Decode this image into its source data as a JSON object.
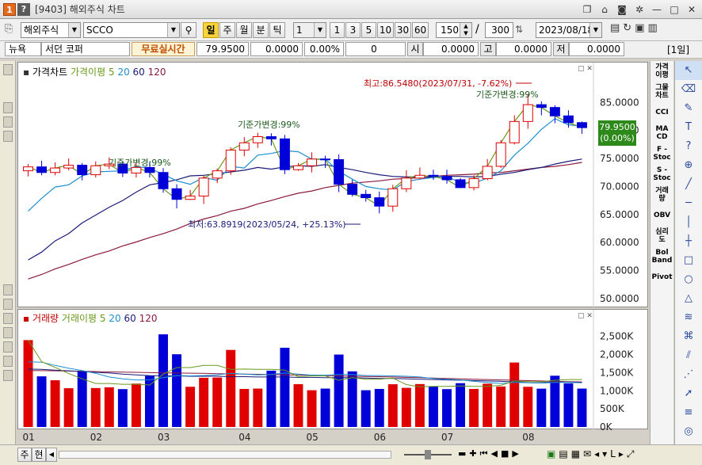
{
  "window": {
    "num": "1",
    "help": "?",
    "title": "[9403] 해외주식 차트"
  },
  "toolbar": {
    "market": "해외주식",
    "symbol": "SCCO",
    "periods": [
      "일",
      "주",
      "월",
      "분",
      "틱"
    ],
    "interval_value": "1",
    "quick_counts": [
      "1",
      "3",
      "5",
      "10",
      "30",
      "60"
    ],
    "count": "150",
    "count_total": "300",
    "date": "2023/08/18"
  },
  "quote": {
    "exchange": "뉴욕",
    "name": "서던 코퍼",
    "realtime_label": "무료실시간",
    "price": "79.9500",
    "change": "0.0000",
    "change_pct": "0.00%",
    "volume": "0",
    "open_label": "시",
    "open": "0.0000",
    "high_label": "고",
    "high": "0.0000",
    "low_label": "저",
    "low": "0.0000",
    "period_tag": "[1일]"
  },
  "price_chart": {
    "legend": {
      "title": "가격차트",
      "ma_title": "가격이평",
      "ma": [
        "5",
        "20",
        "60",
        "120"
      ]
    },
    "y_ticks": [
      "85.0000",
      "80.0000",
      "75.0000",
      "70.0000",
      "65.0000",
      "60.0000",
      "55.0000",
      "50.0000"
    ],
    "current_price_label": "79.9500",
    "current_change_label": "(0.00%)",
    "annotations": {
      "high": "최고:86.5480(2023/07/31, -7.62%)",
      "low": "최저:63.8919(2023/05/24, +25.13%)",
      "base1": "기준가변경:99%",
      "base2": "기준가변경:99%",
      "base3": "기준가변경:99%"
    }
  },
  "volume_chart": {
    "legend": {
      "title": "거래량",
      "ma_title": "거래이평",
      "ma": [
        "5",
        "20",
        "60",
        "120"
      ]
    },
    "y_ticks": [
      "2,500K",
      "2,000K",
      "1,500K",
      "1,000K",
      "500K",
      "0K"
    ]
  },
  "x_ticks": [
    "01",
    "02",
    "03",
    "04",
    "05",
    "06",
    "07",
    "08"
  ],
  "right_tools": [
    "가격\n이평",
    "그물\n차트",
    "CCI",
    "MA\nCD",
    "F -\nStoc",
    "S -\nStoc",
    "거래\n량",
    "OBV",
    "심리\n도",
    "Bol\nBand",
    "Pivot"
  ],
  "bottom": {
    "tab1": "주",
    "tab2": "현"
  },
  "colors": {
    "up": "#e00000",
    "down": "#0000d8",
    "ma5": "#6a9a1a",
    "ma20": "#1c8fd0",
    "ma60": "#1a1a7a",
    "ma120": "#8a1a3a",
    "annotation": "#c00000"
  },
  "chart_data": [
    {
      "type": "candlestick",
      "title": "가격차트",
      "x_ticks": [
        "01",
        "02",
        "03",
        "04",
        "05",
        "06",
        "07",
        "08"
      ],
      "ylim": [
        49,
        89
      ],
      "series": [
        {
          "name": "5",
          "values": [
            73.5,
            72.5,
            73.3,
            73.8,
            72.1,
            73.7,
            74,
            72.4,
            73.4,
            72.5,
            69.6,
            67.7,
            68.3,
            71.5,
            72.8,
            76.5,
            77.8,
            78.9,
            78.5,
            73,
            73.7,
            74.9,
            74.8,
            70.4,
            68.6,
            68,
            66.5,
            69.6,
            71.5,
            72,
            71.8,
            71.2,
            69.8,
            71.4,
            73.6,
            77.8,
            81.6,
            84.6,
            84.1,
            82.6,
            81.4,
            80.5
          ]
        },
        {
          "name": "20",
          "values": [
            65.6,
            67.9,
            69.9,
            70.3,
            71.9,
            72.6,
            72.7,
            72.8,
            73.6,
            73.2,
            72.2,
            71,
            70.4,
            71.6,
            71.1,
            73.6,
            73.3,
            75.6,
            75.9,
            76.4,
            76.2,
            74.9,
            74.9,
            72.7,
            71.3,
            70,
            69.6,
            69.4,
            70.9,
            71.3,
            71.6,
            71.8,
            70.7,
            70.6,
            71.5,
            72.8,
            75.6,
            77.7,
            80.2,
            82.1,
            81,
            80.8
          ]
        },
        {
          "name": "60",
          "values": [
            56.9,
            58.3,
            60.3,
            61.6,
            63.5,
            64.9,
            66.3,
            67.5,
            69,
            70.3,
            70.7,
            71.2,
            71.9,
            72,
            72.3,
            72.6,
            72.9,
            73.4,
            73.1,
            73.5,
            73.7,
            73.6,
            73.9,
            73.4,
            73,
            72.5,
            72.1,
            71.8,
            71.7,
            71.7,
            71.6,
            71.8,
            71.8,
            71.7,
            71.8,
            72.2,
            72.5,
            73,
            73.4,
            74,
            74.5,
            74.9
          ]
        },
        {
          "name": "120",
          "values": [
            53.5,
            54.3,
            55.3,
            56.1,
            57,
            57.8,
            58.5,
            59.4,
            60.1,
            60.9,
            61.6,
            62.4,
            63.4,
            64.2,
            64.8,
            65.6,
            66.1,
            66.9,
            67.5,
            68.2,
            68.8,
            69.2,
            69.8,
            70.2,
            70.6,
            70.8,
            71,
            71.3,
            71.4,
            71.6,
            71.8,
            72,
            72.1,
            72.2,
            72.4,
            72.5,
            72.8,
            73.1,
            73.4,
            73.6,
            73.9,
            74.3
          ]
        }
      ],
      "ohlc": [
        [
          72.8,
          74.0,
          71.8,
          73.5
        ],
        [
          73.5,
          74.6,
          72.0,
          72.5
        ],
        [
          72.5,
          74.3,
          72.0,
          73.3
        ],
        [
          73.3,
          75.0,
          72.9,
          73.8
        ],
        [
          73.8,
          74.2,
          71.1,
          72.1
        ],
        [
          72.1,
          74.5,
          71.6,
          73.7
        ],
        [
          73.7,
          75.2,
          73.1,
          74.0
        ],
        [
          74.0,
          74.5,
          71.7,
          72.4
        ],
        [
          72.4,
          74.3,
          71.6,
          73.4
        ],
        [
          73.4,
          74.4,
          71.6,
          72.5
        ],
        [
          72.5,
          73.3,
          68.9,
          69.6
        ],
        [
          69.6,
          70.4,
          66.1,
          67.7
        ],
        [
          67.7,
          69.4,
          67.6,
          68.3
        ],
        [
          68.3,
          72.0,
          66.9,
          71.5
        ],
        [
          71.5,
          73.2,
          70.6,
          72.8
        ],
        [
          72.8,
          77.0,
          72.1,
          76.5
        ],
        [
          76.5,
          78.8,
          75.4,
          77.8
        ],
        [
          77.8,
          79.6,
          76.9,
          78.9
        ],
        [
          78.9,
          79.5,
          77.3,
          78.5
        ],
        [
          78.5,
          79.2,
          72.2,
          73.0
        ],
        [
          73.0,
          74.2,
          72.8,
          73.7
        ],
        [
          73.7,
          76.1,
          72.5,
          74.9
        ],
        [
          74.9,
          75.5,
          73.3,
          74.8
        ],
        [
          74.8,
          75.7,
          69.0,
          70.4
        ],
        [
          70.4,
          71.2,
          68.2,
          68.6
        ],
        [
          68.6,
          69.4,
          67.3,
          68.0
        ],
        [
          68.0,
          69.1,
          65.2,
          66.5
        ],
        [
          66.5,
          70.3,
          65.5,
          69.6
        ],
        [
          69.6,
          72.9,
          69.0,
          71.5
        ],
        [
          71.5,
          73.4,
          71.3,
          72.0
        ],
        [
          72.0,
          73.0,
          71.2,
          71.8
        ],
        [
          71.8,
          73.0,
          70.5,
          71.2
        ],
        [
          71.2,
          71.5,
          69.7,
          69.8
        ],
        [
          69.8,
          72.0,
          69.3,
          71.4
        ],
        [
          71.4,
          74.9,
          71.1,
          73.6
        ],
        [
          73.6,
          78.3,
          73.3,
          77.8
        ],
        [
          77.8,
          82.7,
          77.5,
          81.6
        ],
        [
          81.6,
          86.5,
          80.3,
          84.6
        ],
        [
          84.6,
          85.2,
          82.7,
          84.1
        ],
        [
          84.1,
          84.5,
          81.3,
          82.6
        ],
        [
          82.6,
          83.6,
          80.5,
          81.4
        ],
        [
          81.4,
          81.6,
          79.4,
          80.5
        ]
      ]
    },
    {
      "type": "bar",
      "title": "거래량",
      "x_ticks": [
        "01",
        "02",
        "03",
        "04",
        "05",
        "06",
        "07",
        "08"
      ],
      "ylim": [
        0,
        2800
      ],
      "values": [
        2398,
        1398,
        1290,
        1070,
        1530,
        1075,
        1095,
        1045,
        1198,
        1410,
        2558,
        2008,
        1110,
        1358,
        1365,
        2128,
        1050,
        1060,
        1555,
        2188,
        1183,
        1015,
        1060,
        2000,
        1535,
        1015,
        1050,
        1180,
        1080,
        1185,
        1125,
        1045,
        1210,
        1050,
        1195,
        1118,
        1780,
        1110,
        1058,
        1415,
        1205,
        1060
      ],
      "series": [
        {
          "name": "5",
          "values": [
            2400,
            1802,
            1644,
            1474,
            1330,
            1200,
            1200,
            1180,
            1180,
            1160,
            1460,
            1640,
            1640,
            1700,
            1700,
            1590,
            1600,
            1590,
            1590,
            1570,
            1390,
            1410,
            1410,
            1290,
            1360,
            1320,
            1320,
            1350,
            1170,
            1110,
            1120,
            1120,
            1130,
            1120,
            1120,
            1150,
            1270,
            1250,
            1250,
            1290,
            1310,
            1310
          ]
        },
        {
          "name": "20",
          "values": [
            1800,
            1790,
            1700,
            1620,
            1560,
            1480,
            1380,
            1330,
            1300,
            1300,
            1360,
            1420,
            1410,
            1420,
            1440,
            1480,
            1460,
            1440,
            1450,
            1490,
            1460,
            1430,
            1430,
            1450,
            1450,
            1420,
            1420,
            1410,
            1400,
            1380,
            1340,
            1320,
            1300,
            1260,
            1230,
            1200,
            1230,
            1220,
            1210,
            1230,
            1230,
            1220
          ]
        },
        {
          "name": "60",
          "values": [
            1600,
            1590,
            1570,
            1550,
            1530,
            1510,
            1490,
            1460,
            1440,
            1420,
            1410,
            1410,
            1400,
            1400,
            1400,
            1390,
            1390,
            1380,
            1380,
            1380,
            1370,
            1370,
            1360,
            1360,
            1360,
            1350,
            1340,
            1340,
            1330,
            1320,
            1310,
            1300,
            1290,
            1280,
            1270,
            1260,
            1250,
            1250,
            1240,
            1240,
            1240,
            1230
          ]
        },
        {
          "name": "120",
          "values": [
            1560,
            1555,
            1550,
            1545,
            1540,
            1530,
            1520,
            1515,
            1510,
            1500,
            1495,
            1490,
            1485,
            1480,
            1470,
            1465,
            1460,
            1455,
            1450,
            1440,
            1435,
            1430,
            1420,
            1410,
            1400,
            1395,
            1390,
            1380,
            1370,
            1360,
            1350,
            1340,
            1330,
            1320,
            1310,
            1300,
            1290,
            1280,
            1270,
            1260,
            1250,
            1245
          ]
        }
      ]
    }
  ]
}
